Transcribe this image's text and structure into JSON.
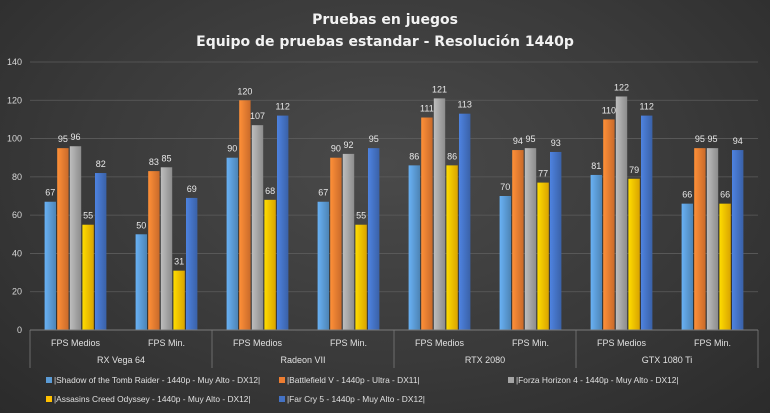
{
  "chart_data": {
    "type": "bar",
    "title": "Pruebas en juegos",
    "subtitle": "Equipo de pruebas estandar - Resolución 1440p",
    "ylim": [
      0,
      140
    ],
    "yticks": [
      0,
      20,
      40,
      60,
      80,
      100,
      120,
      140
    ],
    "groups": [
      "RX Vega 64",
      "Radeon VII",
      "RTX 2080",
      "GTX 1080 Ti"
    ],
    "subcategories": [
      "FPS Medios",
      "FPS Min."
    ],
    "categories": [
      "RX Vega 64 / FPS Medios",
      "RX Vega 64 / FPS Min.",
      "Radeon VII / FPS Medios",
      "Radeon VII / FPS Min.",
      "RTX 2080 / FPS Medios",
      "RTX 2080 / FPS Min.",
      "GTX 1080 Ti / FPS Medios",
      "GTX 1080 Ti / FPS Min."
    ],
    "series": [
      {
        "name": "|Shadow of the Tomb Raider - 1440p - Muy Alto - DX12|",
        "color": "#5b9bd5",
        "values": [
          67,
          50,
          90,
          67,
          86,
          70,
          81,
          66
        ]
      },
      {
        "name": "|Battlefield V - 1440p - Ultra - DX11|",
        "color": "#ed7d31",
        "values": [
          95,
          83,
          120,
          90,
          111,
          94,
          110,
          95
        ]
      },
      {
        "name": "|Forza Horizon 4 - 1440p - Muy Alto - DX12|",
        "color": "#a5a5a5",
        "values": [
          96,
          85,
          107,
          92,
          121,
          95,
          122,
          95
        ]
      },
      {
        "name": "|Assasins Creed Odyssey - 1440p - Muy Alto - DX12|",
        "color": "#ffc000",
        "values": [
          55,
          31,
          68,
          55,
          86,
          77,
          79,
          66
        ]
      },
      {
        "name": "|Far Cry 5 - 1440p - Muy Alto - DX12|",
        "color": "#4472c4",
        "values": [
          82,
          69,
          112,
          95,
          113,
          93,
          112,
          94
        ]
      }
    ],
    "grid": true,
    "legend_position": "bottom"
  }
}
